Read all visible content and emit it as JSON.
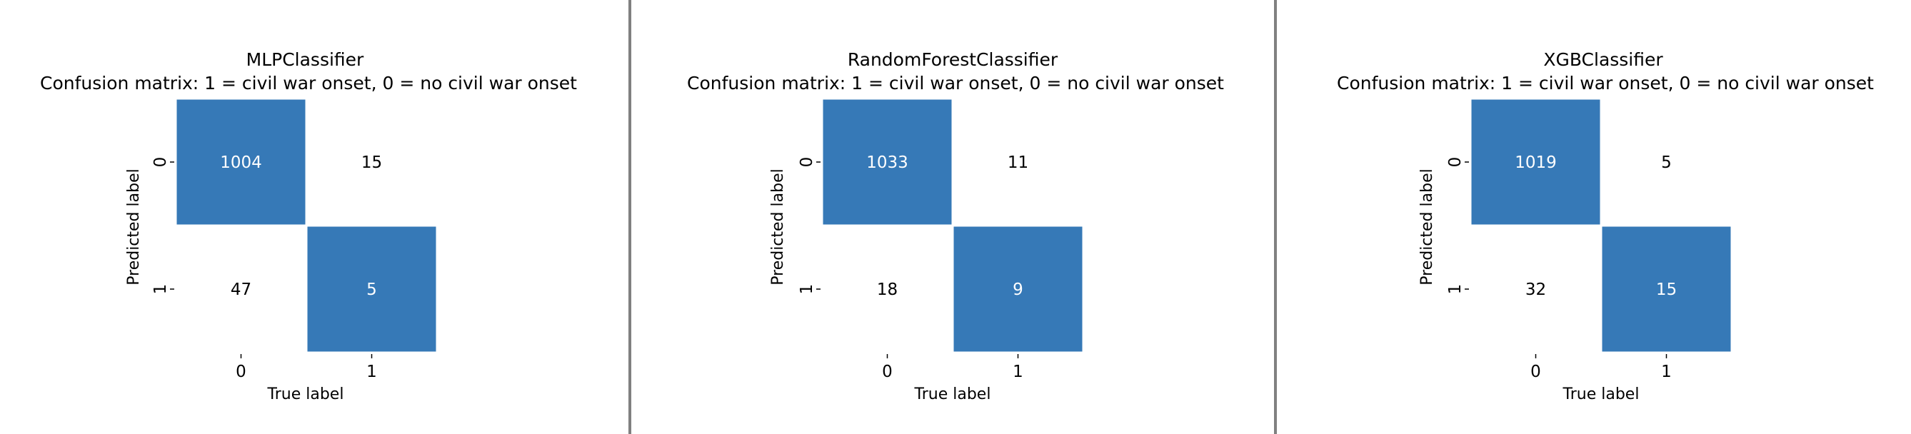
{
  "colors": {
    "filled_cell": "#3679b7",
    "empty_cell": "#ffffff",
    "text_dark": "#000000",
    "text_light": "#ffffff",
    "divider": "#808080"
  },
  "chart_data": [
    {
      "type": "heatmap",
      "title": "MLPClassifier",
      "subtitle": "Confusion matrix: 1 = civil war onset, 0 = no civil war onset",
      "xlabel": "True label",
      "ylabel": "Predicted label",
      "x_categories": [
        "0",
        "1"
      ],
      "y_categories": [
        "0",
        "1"
      ],
      "values": [
        [
          1004,
          15
        ],
        [
          47,
          5
        ]
      ],
      "highlighted": [
        [
          true,
          false
        ],
        [
          false,
          true
        ]
      ],
      "grid": false,
      "legend": "none"
    },
    {
      "type": "heatmap",
      "title": "RandomForestClassifier",
      "subtitle": "Confusion matrix: 1 = civil war onset, 0 = no civil war onset",
      "xlabel": "True label",
      "ylabel": "Predicted label",
      "x_categories": [
        "0",
        "1"
      ],
      "y_categories": [
        "0",
        "1"
      ],
      "values": [
        [
          1033,
          11
        ],
        [
          18,
          9
        ]
      ],
      "highlighted": [
        [
          true,
          false
        ],
        [
          false,
          true
        ]
      ],
      "grid": false,
      "legend": "none"
    },
    {
      "type": "heatmap",
      "title": "XGBClassifier",
      "subtitle": "Confusion matrix: 1 = civil war onset, 0 = no civil war onset",
      "xlabel": "True label",
      "ylabel": "Predicted label",
      "x_categories": [
        "0",
        "1"
      ],
      "y_categories": [
        "0",
        "1"
      ],
      "values": [
        [
          1019,
          5
        ],
        [
          32,
          15
        ]
      ],
      "highlighted": [
        [
          true,
          false
        ],
        [
          false,
          true
        ]
      ],
      "grid": false,
      "legend": "none"
    }
  ]
}
